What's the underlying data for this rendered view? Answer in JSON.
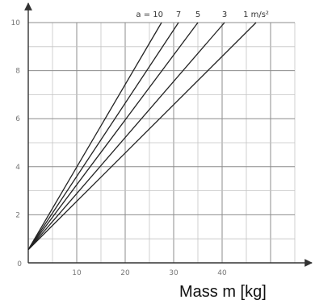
{
  "chart_data": {
    "type": "line",
    "title": "",
    "xlabel": "Mass m [kg]",
    "ylabel": "",
    "xlim": [
      0,
      55
    ],
    "ylim": [
      0,
      10
    ],
    "x_ticks": [
      "10",
      "20",
      "30",
      "40"
    ],
    "y_ticks": [
      "2",
      "4",
      "6",
      "8",
      "10"
    ],
    "grid": true,
    "series": [
      {
        "name": "a = 10",
        "x": [
          0,
          27.5
        ],
        "y": [
          0.55,
          10
        ]
      },
      {
        "name": "7",
        "x": [
          0,
          31
        ],
        "y": [
          0.55,
          10
        ]
      },
      {
        "name": "5",
        "x": [
          0,
          35
        ],
        "y": [
          0.55,
          10
        ]
      },
      {
        "name": "3",
        "x": [
          0,
          40.5
        ],
        "y": [
          0.55,
          10
        ]
      },
      {
        "name": "1 m/s²",
        "x": [
          0,
          47
        ],
        "y": [
          0.55,
          10
        ]
      }
    ]
  }
}
